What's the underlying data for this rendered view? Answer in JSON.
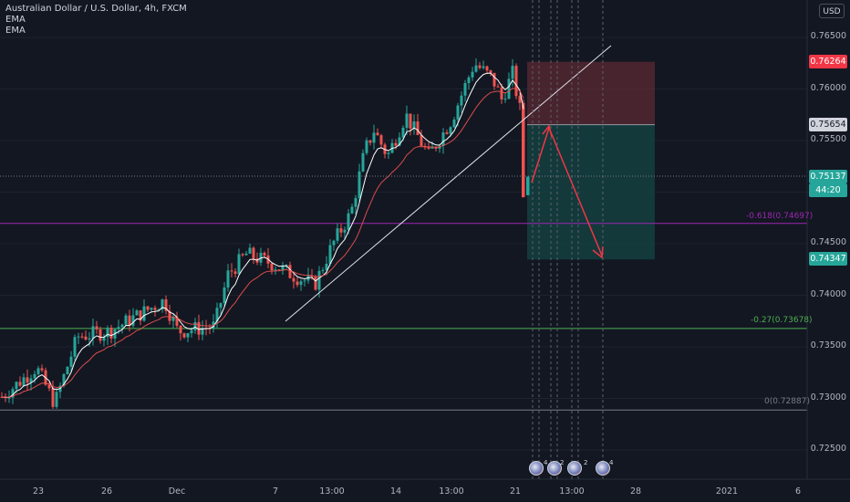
{
  "header": {
    "symbol_line": "Australian Dollar / U.S. Dollar, 4h, FXCM",
    "indicator_1": "EMA",
    "indicator_2": "EMA"
  },
  "currency_button": "USD",
  "price_axis": {
    "ticks": [
      "0.76500",
      "0.76000",
      "0.75500",
      "0.75000",
      "0.74500",
      "0.74000",
      "0.73500",
      "0.73000",
      "0.72500"
    ],
    "tick_values": [
      0.765,
      0.76,
      0.755,
      0.75,
      0.745,
      0.74,
      0.735,
      0.73,
      0.725
    ],
    "stop_price": "0.76264",
    "entry_price": "0.75654",
    "current_price": "0.75137",
    "countdown": "44:20",
    "target_price": "0.74347"
  },
  "time_axis": {
    "labels": [
      "23",
      "26",
      "Dec",
      "7",
      "13:00",
      "14",
      "13:00",
      "21",
      "13:00",
      "28",
      "2021",
      "6"
    ]
  },
  "fib_levels": [
    {
      "label": "-0.618(0.74697)",
      "value": 0.74697,
      "color": "#9c27b0"
    },
    {
      "label": "-0.27(0.73678)",
      "value": 0.73678,
      "color": "#4caf50"
    },
    {
      "label": "0(0.72887)",
      "value": 0.72887,
      "color": "#787b86"
    }
  ],
  "events": [
    {
      "count": "4"
    },
    {
      "count": "2"
    },
    {
      "count": "2"
    },
    {
      "count": "4"
    }
  ],
  "colors": {
    "up": "#26a69a",
    "down": "#ef5350",
    "background": "#131722",
    "stop_zone": "#5b2a33",
    "target_zone": "#14403f",
    "arrow": "#f23645"
  },
  "chart_data": {
    "type": "candlestick",
    "symbol": "Australian Dollar / U.S. Dollar",
    "timeframe": "4h",
    "ylim": [
      0.721,
      0.768
    ],
    "position": {
      "entry": 0.75654,
      "stop": 0.76264,
      "target": 0.74347
    }
  }
}
